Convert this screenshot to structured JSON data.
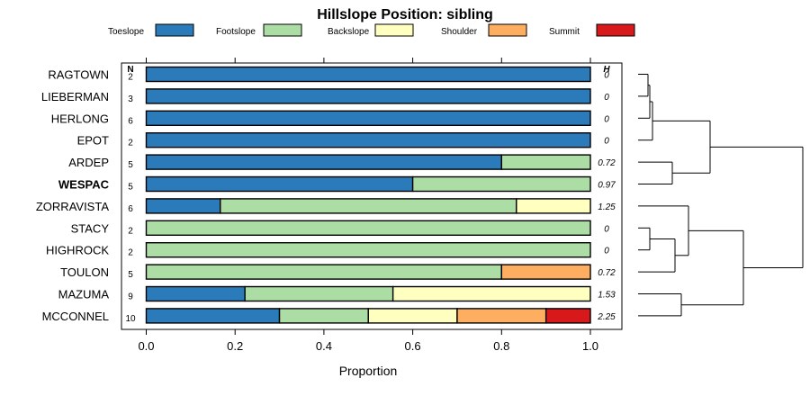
{
  "chart_data": {
    "type": "bar",
    "stacked": true,
    "orientation": "horizontal",
    "title": "Hillslope Position: sibling",
    "xlabel": "Proportion",
    "xlim": [
      0,
      1
    ],
    "xticks": [
      "0.0",
      "0.2",
      "0.4",
      "0.6",
      "0.8",
      "1.0"
    ],
    "n_header": "N",
    "h_header": "H",
    "series": [
      {
        "name": "Toeslope",
        "color": "#2b7bba"
      },
      {
        "name": "Footslope",
        "color": "#abdda4"
      },
      {
        "name": "Backslope",
        "color": "#ffffbf"
      },
      {
        "name": "Shoulder",
        "color": "#fdae61"
      },
      {
        "name": "Summit",
        "color": "#d7191c"
      }
    ],
    "rows": [
      {
        "label": "RAGTOWN",
        "bold": false,
        "n": "2",
        "h": "0",
        "values": [
          1,
          0,
          0,
          0,
          0
        ]
      },
      {
        "label": "LIEBERMAN",
        "bold": false,
        "n": "3",
        "h": "0",
        "values": [
          1,
          0,
          0,
          0,
          0
        ]
      },
      {
        "label": "HERLONG",
        "bold": false,
        "n": "6",
        "h": "0",
        "values": [
          1,
          0,
          0,
          0,
          0
        ]
      },
      {
        "label": "EPOT",
        "bold": false,
        "n": "2",
        "h": "0",
        "values": [
          1,
          0,
          0,
          0,
          0
        ]
      },
      {
        "label": "ARDEP",
        "bold": false,
        "n": "5",
        "h": "0.72",
        "values": [
          0.8,
          0.2,
          0,
          0,
          0
        ]
      },
      {
        "label": "WESPAC",
        "bold": true,
        "n": "5",
        "h": "0.97",
        "values": [
          0.6,
          0.4,
          0,
          0,
          0
        ]
      },
      {
        "label": "ZORRAVISTA",
        "bold": false,
        "n": "6",
        "h": "1.25",
        "values": [
          0.1667,
          0.6667,
          0.1667,
          0,
          0
        ]
      },
      {
        "label": "STACY",
        "bold": false,
        "n": "2",
        "h": "0",
        "values": [
          0,
          1,
          0,
          0,
          0
        ]
      },
      {
        "label": "HIGHROCK",
        "bold": false,
        "n": "2",
        "h": "0",
        "values": [
          0,
          1,
          0,
          0,
          0
        ]
      },
      {
        "label": "TOULON",
        "bold": false,
        "n": "5",
        "h": "0.72",
        "values": [
          0,
          0.8,
          0,
          0.2,
          0
        ]
      },
      {
        "label": "MAZUMA",
        "bold": false,
        "n": "9",
        "h": "1.53",
        "values": [
          0.2222,
          0.3333,
          0.4444,
          0,
          0
        ]
      },
      {
        "label": "MCCONNEL",
        "bold": false,
        "n": "10",
        "h": "2.25",
        "values": [
          0.3,
          0.2,
          0.2,
          0.2,
          0.1
        ]
      }
    ]
  }
}
